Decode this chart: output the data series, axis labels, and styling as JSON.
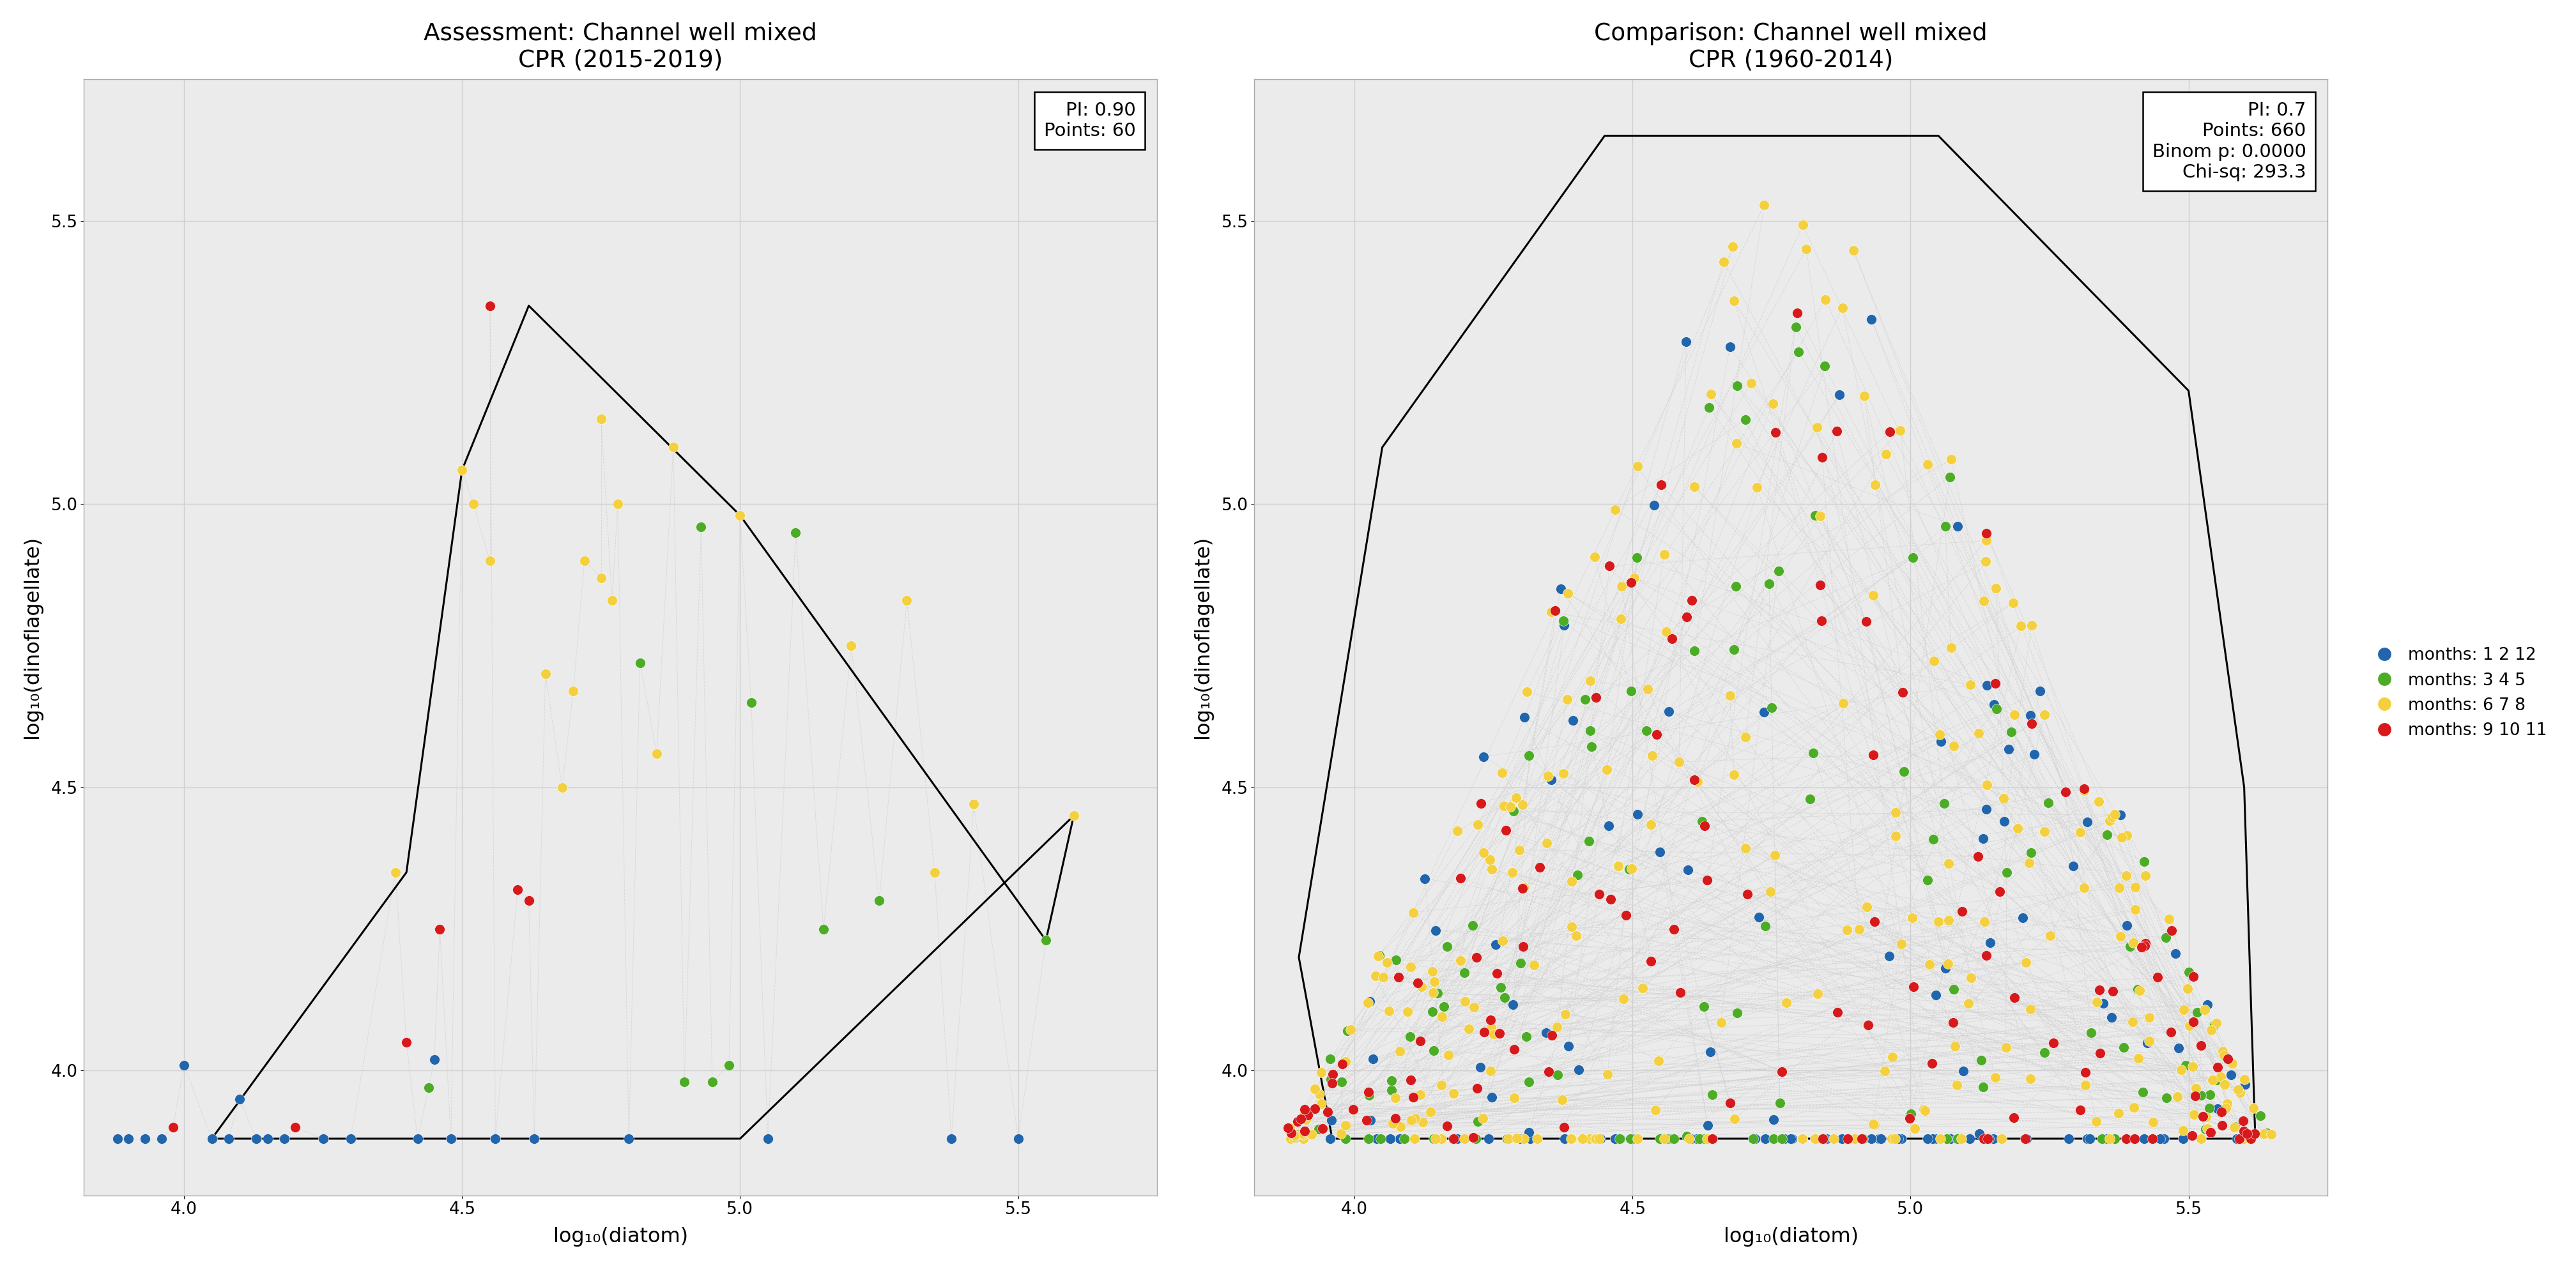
{
  "left_title": "Assessment: Channel well mixed\nCPR (2015-2019)",
  "right_title": "Comparison: Channel well mixed\nCPR (1960-2014)",
  "xlabel": "log₁₀(diatom)",
  "ylabel": "log₁₀(dinoflagellate)",
  "xlim": [
    3.82,
    5.75
  ],
  "ylim": [
    3.78,
    5.75
  ],
  "left_info": "PI: 0.90\nPoints: 60",
  "right_info": "PI: 0.7\nPoints: 660\nBinom p: 0.0000\nChi-sq: 293.3",
  "colors": {
    "blue": "#2166ac",
    "green": "#4dac26",
    "yellow": "#f4d03f",
    "red": "#d7191c"
  },
  "legend_labels": [
    "months: 1 2 12",
    "months: 3 4 5",
    "months: 6 7 8",
    "months: 9 10 11"
  ],
  "bg_color": "#ffffff",
  "grid_color": "#d0d0d0",
  "left_x": [
    3.88,
    3.9,
    3.93,
    3.96,
    3.98,
    4.0,
    4.05,
    4.08,
    4.1,
    4.13,
    4.15,
    4.18,
    4.2,
    4.25,
    4.3,
    4.38,
    4.4,
    4.42,
    4.44,
    4.45,
    4.46,
    4.48,
    4.5,
    4.52,
    4.55,
    4.55,
    4.56,
    4.6,
    4.62,
    4.63,
    4.65,
    4.68,
    4.7,
    4.72,
    4.75,
    4.75,
    4.77,
    4.78,
    4.8,
    4.82,
    4.85,
    4.88,
    4.9,
    4.93,
    4.95,
    4.98,
    5.0,
    5.02,
    5.05,
    5.1,
    5.15,
    5.2,
    5.25,
    5.3,
    5.35,
    5.38,
    5.42,
    5.5,
    5.55,
    5.6
  ],
  "left_y": [
    3.88,
    3.88,
    3.88,
    3.88,
    3.9,
    4.01,
    3.88,
    3.88,
    3.95,
    3.88,
    3.88,
    3.88,
    3.9,
    3.88,
    3.88,
    4.35,
    4.05,
    3.88,
    3.97,
    4.02,
    4.25,
    3.88,
    5.06,
    5.0,
    4.9,
    5.35,
    3.88,
    4.32,
    4.3,
    3.88,
    4.7,
    4.5,
    4.67,
    4.9,
    4.87,
    5.15,
    4.83,
    5.0,
    3.88,
    4.72,
    4.56,
    5.1,
    3.98,
    4.96,
    3.98,
    4.01,
    4.98,
    4.65,
    3.88,
    4.95,
    4.25,
    4.75,
    4.3,
    4.83,
    4.35,
    3.88,
    4.47,
    3.88,
    4.23,
    4.45
  ],
  "left_c": [
    "blue",
    "blue",
    "blue",
    "blue",
    "red",
    "blue",
    "blue",
    "blue",
    "blue",
    "blue",
    "blue",
    "blue",
    "red",
    "blue",
    "blue",
    "yellow",
    "red",
    "blue",
    "green",
    "blue",
    "red",
    "blue",
    "yellow",
    "yellow",
    "yellow",
    "red",
    "blue",
    "red",
    "red",
    "blue",
    "yellow",
    "yellow",
    "yellow",
    "yellow",
    "yellow",
    "yellow",
    "yellow",
    "yellow",
    "blue",
    "green",
    "yellow",
    "yellow",
    "green",
    "green",
    "green",
    "green",
    "yellow",
    "green",
    "blue",
    "green",
    "green",
    "yellow",
    "green",
    "yellow",
    "yellow",
    "blue",
    "yellow",
    "blue",
    "green",
    "yellow"
  ],
  "left_hull": [
    [
      4.05,
      3.88
    ],
    [
      4.4,
      4.35
    ],
    [
      4.5,
      5.06
    ],
    [
      4.62,
      5.35
    ],
    [
      5.0,
      4.98
    ],
    [
      5.55,
      4.23
    ],
    [
      5.6,
      4.45
    ],
    [
      5.0,
      3.88
    ],
    [
      4.6,
      3.88
    ],
    [
      4.05,
      3.88
    ]
  ],
  "right_hull": [
    [
      3.96,
      3.88
    ],
    [
      3.9,
      4.2
    ],
    [
      4.05,
      5.1
    ],
    [
      4.45,
      5.65
    ],
    [
      5.05,
      5.65
    ],
    [
      5.5,
      5.2
    ],
    [
      5.6,
      4.5
    ],
    [
      5.62,
      3.88
    ],
    [
      3.96,
      3.88
    ]
  ],
  "xticks": [
    4.0,
    4.5,
    5.0,
    5.5
  ],
  "yticks": [
    4.0,
    4.5,
    5.0,
    5.5
  ]
}
